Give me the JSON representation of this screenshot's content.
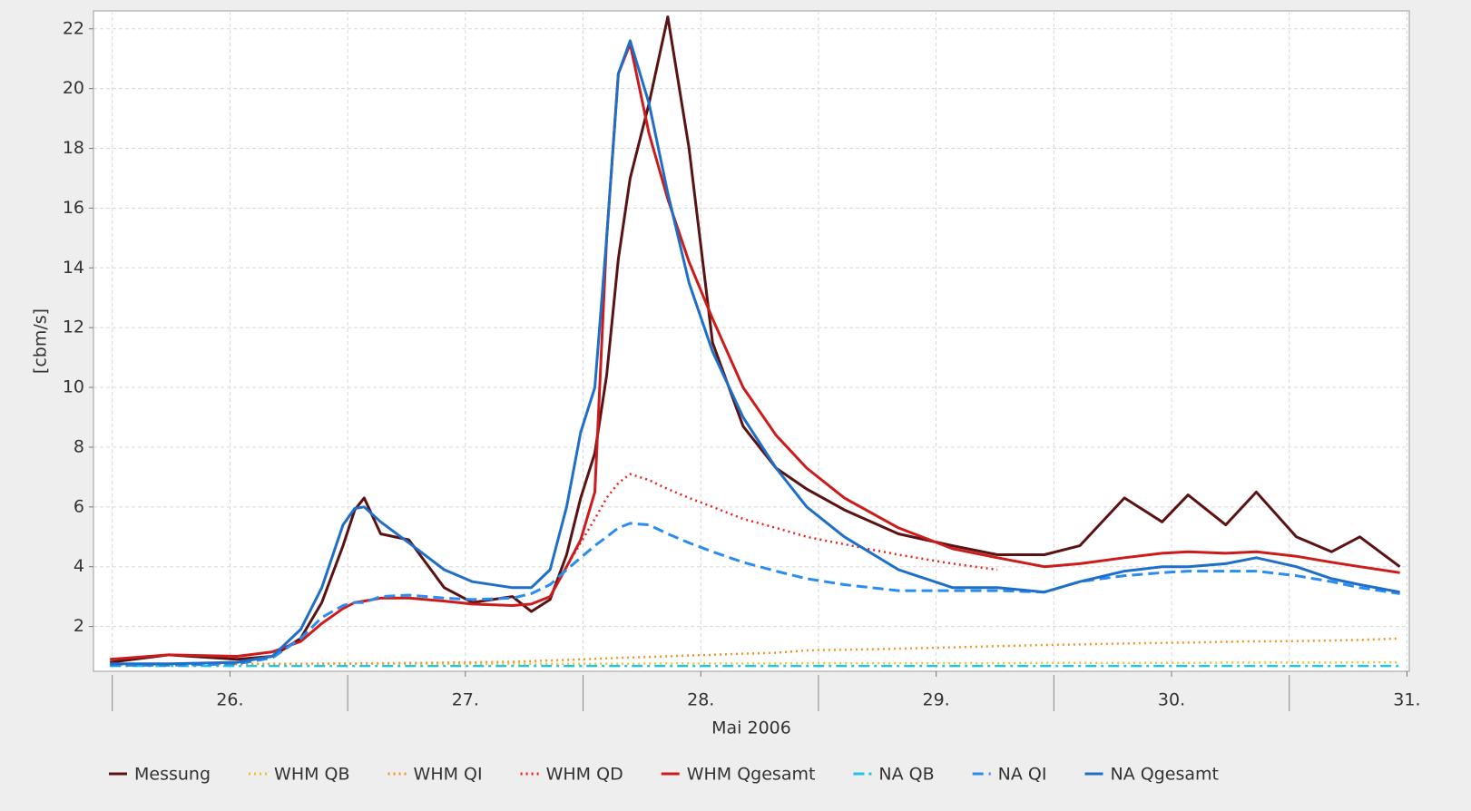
{
  "chart_data": {
    "type": "line",
    "x_label": "Mai 2006",
    "y_label": "[cbm/s]",
    "x": [
      25.99,
      26.24,
      26.53,
      26.68,
      26.8,
      26.89,
      26.98,
      27.03,
      27.07,
      27.14,
      27.26,
      27.41,
      27.53,
      27.7,
      27.78,
      27.86,
      27.93,
      27.99,
      28.05,
      28.1,
      28.15,
      28.2,
      28.28,
      28.36,
      28.45,
      28.55,
      28.68,
      28.82,
      28.95,
      29.11,
      29.34,
      29.57,
      29.76,
      29.96,
      30.11,
      30.3,
      30.46,
      30.57,
      30.73,
      30.86,
      31.03,
      31.18,
      31.3,
      31.47
    ],
    "xlim": [
      25.92,
      31.51
    ],
    "xticks": [
      {
        "value": 26.5,
        "label": "26."
      },
      {
        "value": 27.5,
        "label": "27."
      },
      {
        "value": 28.5,
        "label": "28."
      },
      {
        "value": 29.5,
        "label": "29."
      },
      {
        "value": 30.5,
        "label": "30."
      },
      {
        "value": 31.5,
        "label": "31."
      }
    ],
    "ylim": [
      0.5,
      22.6
    ],
    "yticks": [
      2,
      4,
      6,
      8,
      10,
      12,
      14,
      16,
      18,
      20,
      22
    ],
    "grid": true,
    "legend": "bottom",
    "series": [
      {
        "name": "Messung",
        "color": "#5a1212",
        "style": "solid",
        "width": 3,
        "values": [
          0.8,
          1.05,
          0.9,
          1.0,
          1.6,
          2.8,
          4.7,
          5.9,
          6.3,
          5.1,
          4.9,
          3.3,
          2.8,
          3.0,
          2.5,
          2.9,
          4.4,
          6.3,
          7.8,
          10.4,
          14.3,
          17.0,
          19.5,
          22.4,
          18.0,
          11.5,
          8.7,
          7.3,
          6.6,
          5.9,
          5.1,
          4.7,
          4.4,
          4.4,
          4.7,
          6.3,
          5.5,
          6.4,
          5.4,
          6.5,
          5.0,
          4.5,
          5.0,
          4.0
        ]
      },
      {
        "name": "WHM QB",
        "color": "#f2c12e",
        "style": "dotted",
        "width": 2.5,
        "values": [
          0.75,
          0.75,
          0.75,
          0.75,
          0.75,
          0.75,
          0.75,
          0.75,
          0.75,
          0.75,
          0.75,
          0.75,
          0.75,
          0.75,
          0.75,
          0.75,
          0.75,
          0.75,
          0.75,
          0.75,
          0.75,
          0.75,
          0.76,
          0.76,
          0.76,
          0.76,
          0.76,
          0.76,
          0.77,
          0.77,
          0.77,
          0.77,
          0.77,
          0.78,
          0.78,
          0.78,
          0.78,
          0.78,
          0.79,
          0.79,
          0.79,
          0.79,
          0.8,
          0.8
        ]
      },
      {
        "name": "WHM QI",
        "color": "#f39426",
        "style": "dotted",
        "width": 2.5,
        "values": [
          0.72,
          0.73,
          0.74,
          0.75,
          0.75,
          0.76,
          0.76,
          0.76,
          0.77,
          0.77,
          0.78,
          0.79,
          0.8,
          0.82,
          0.84,
          0.86,
          0.88,
          0.9,
          0.92,
          0.93,
          0.95,
          0.96,
          0.98,
          1.0,
          1.03,
          1.05,
          1.09,
          1.12,
          1.2,
          1.22,
          1.26,
          1.3,
          1.34,
          1.38,
          1.4,
          1.43,
          1.45,
          1.46,
          1.49,
          1.5,
          1.51,
          1.53,
          1.55,
          1.6
        ]
      },
      {
        "name": "WHM QD",
        "color": "#e8221f",
        "style": "dotted",
        "width": 2.5,
        "values": [
          null,
          null,
          null,
          null,
          null,
          null,
          null,
          null,
          null,
          null,
          null,
          null,
          null,
          null,
          null,
          3.0,
          4.0,
          4.8,
          5.6,
          6.3,
          6.8,
          7.1,
          6.9,
          6.6,
          6.3,
          6.0,
          5.6,
          5.3,
          5.0,
          4.75,
          4.4,
          4.1,
          3.9,
          null,
          null,
          null,
          null,
          null,
          null,
          null,
          null,
          null,
          null,
          null
        ]
      },
      {
        "name": "WHM Qgesamt",
        "color": "#cc1b1b",
        "style": "solid",
        "width": 3,
        "values": [
          0.9,
          1.05,
          1.0,
          1.15,
          1.5,
          2.1,
          2.6,
          2.8,
          2.85,
          2.95,
          2.95,
          2.85,
          2.75,
          2.7,
          2.75,
          3.0,
          4.0,
          4.9,
          6.5,
          15.0,
          20.5,
          21.5,
          18.5,
          16.3,
          14.2,
          12.3,
          10.0,
          8.4,
          7.3,
          6.3,
          5.3,
          4.6,
          4.3,
          4.0,
          4.1,
          4.3,
          4.45,
          4.5,
          4.45,
          4.5,
          4.35,
          4.15,
          4.0,
          3.8
        ]
      },
      {
        "name": "NA QB",
        "color": "#1fc6e4",
        "style": "dashdot",
        "width": 2.5,
        "values": [
          0.68,
          0.68,
          0.68,
          0.68,
          0.68,
          0.68,
          0.68,
          0.68,
          0.68,
          0.68,
          0.68,
          0.68,
          0.68,
          0.68,
          0.68,
          0.68,
          0.68,
          0.68,
          0.68,
          0.68,
          0.68,
          0.68,
          0.68,
          0.68,
          0.68,
          0.68,
          0.68,
          0.68,
          0.68,
          0.68,
          0.68,
          0.68,
          0.68,
          0.68,
          0.68,
          0.68,
          0.68,
          0.68,
          0.68,
          0.68,
          0.68,
          0.68,
          0.68,
          0.68
        ]
      },
      {
        "name": "NA QI",
        "color": "#2a8cf0",
        "style": "dashed",
        "width": 3,
        "values": [
          0.7,
          0.7,
          0.75,
          0.95,
          1.6,
          2.3,
          2.7,
          2.8,
          2.8,
          3.0,
          3.05,
          2.95,
          2.9,
          2.95,
          3.1,
          3.4,
          3.9,
          4.3,
          4.7,
          5.0,
          5.3,
          5.45,
          5.4,
          5.1,
          4.8,
          4.5,
          4.15,
          3.85,
          3.6,
          3.4,
          3.2,
          3.2,
          3.2,
          3.15,
          3.5,
          3.7,
          3.8,
          3.85,
          3.85,
          3.85,
          3.7,
          3.5,
          3.3,
          3.1
        ]
      },
      {
        "name": "NA Qgesamt",
        "color": "#1f6fc8",
        "style": "solid",
        "width": 3,
        "values": [
          0.75,
          0.75,
          0.8,
          1.0,
          1.9,
          3.3,
          5.4,
          5.95,
          6.0,
          5.5,
          4.8,
          3.9,
          3.5,
          3.3,
          3.3,
          3.9,
          6.0,
          8.5,
          10.0,
          15.0,
          20.5,
          21.6,
          19.5,
          16.5,
          13.5,
          11.2,
          9.0,
          7.3,
          6.0,
          5.0,
          3.9,
          3.3,
          3.3,
          3.15,
          3.5,
          3.85,
          4.0,
          4.0,
          4.1,
          4.3,
          4.0,
          3.6,
          3.4,
          3.15
        ]
      }
    ]
  }
}
